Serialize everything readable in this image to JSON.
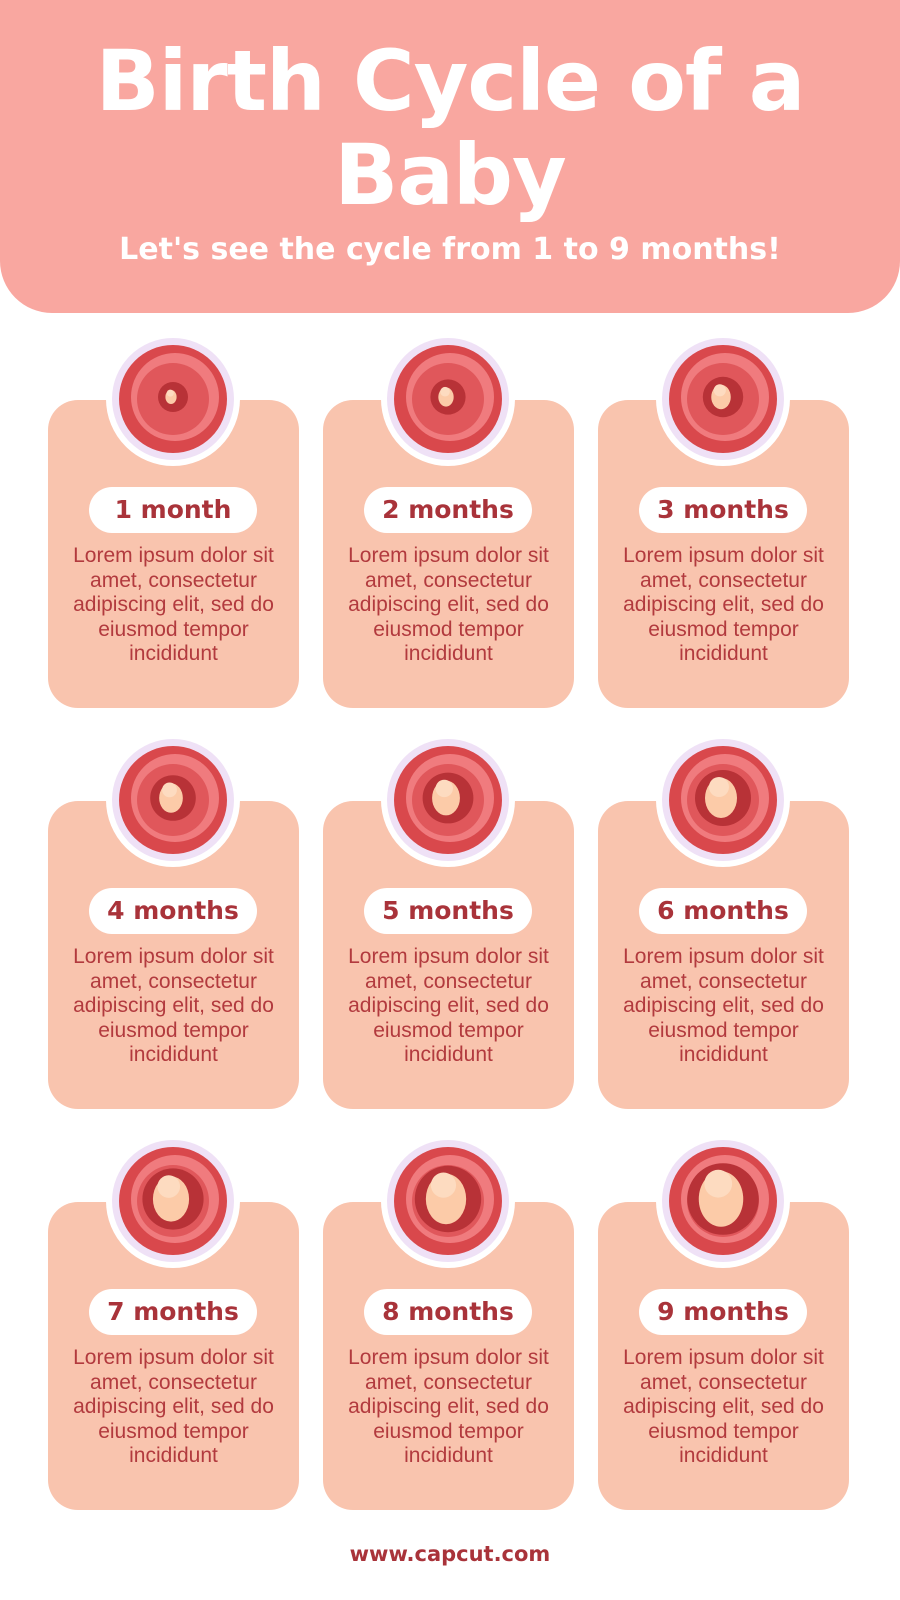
{
  "header": {
    "title": "Birth Cycle of a Baby",
    "subtitle": "Let's see the cycle from 1 to 9 months!"
  },
  "stages": [
    {
      "label": "1 month",
      "description": "Lorem ipsum dolor sit amet, consectetur adipiscing elit, sed do eiusmod tempor incididunt",
      "icon": "embryo-icon"
    },
    {
      "label": "2 months",
      "description": "Lorem ipsum dolor sit amet, consectetur adipiscing elit, sed do eiusmod tempor incididunt",
      "icon": "fetus-icon"
    },
    {
      "label": "3 months",
      "description": "Lorem ipsum dolor sit amet, consectetur adipiscing elit, sed do eiusmod tempor incididunt",
      "icon": "fetus-icon"
    },
    {
      "label": "4 months",
      "description": "Lorem ipsum dolor sit amet, consectetur adipiscing elit, sed do eiusmod tempor incididunt",
      "icon": "fetus-icon"
    },
    {
      "label": "5 months",
      "description": "Lorem ipsum dolor sit amet, consectetur adipiscing elit, sed do eiusmod tempor incididunt",
      "icon": "fetus-icon"
    },
    {
      "label": "6 months",
      "description": "Lorem ipsum dolor sit amet, consectetur adipiscing elit, sed do eiusmod tempor incididunt",
      "icon": "fetus-icon"
    },
    {
      "label": "7 months",
      "description": "Lorem ipsum dolor sit amet, consectetur adipiscing elit, sed do eiusmod tempor incididunt",
      "icon": "fetus-icon"
    },
    {
      "label": "8 months",
      "description": "Lorem ipsum dolor sit amet, consectetur adipiscing elit, sed do eiusmod tempor incididunt",
      "icon": "fetus-icon"
    },
    {
      "label": "9 months",
      "description": "Lorem ipsum dolor sit amet, consectetur adipiscing elit, sed do eiusmod tempor incididunt",
      "icon": "fetus-icon"
    }
  ],
  "footer": {
    "url": "www.capcut.com"
  },
  "colors": {
    "header": "#F9A7A0",
    "card": "#F9C4AE",
    "text": "#A9333A",
    "ring": "#EFE1F6",
    "womb": "#D9484C",
    "skin": "#FCCBA8"
  }
}
